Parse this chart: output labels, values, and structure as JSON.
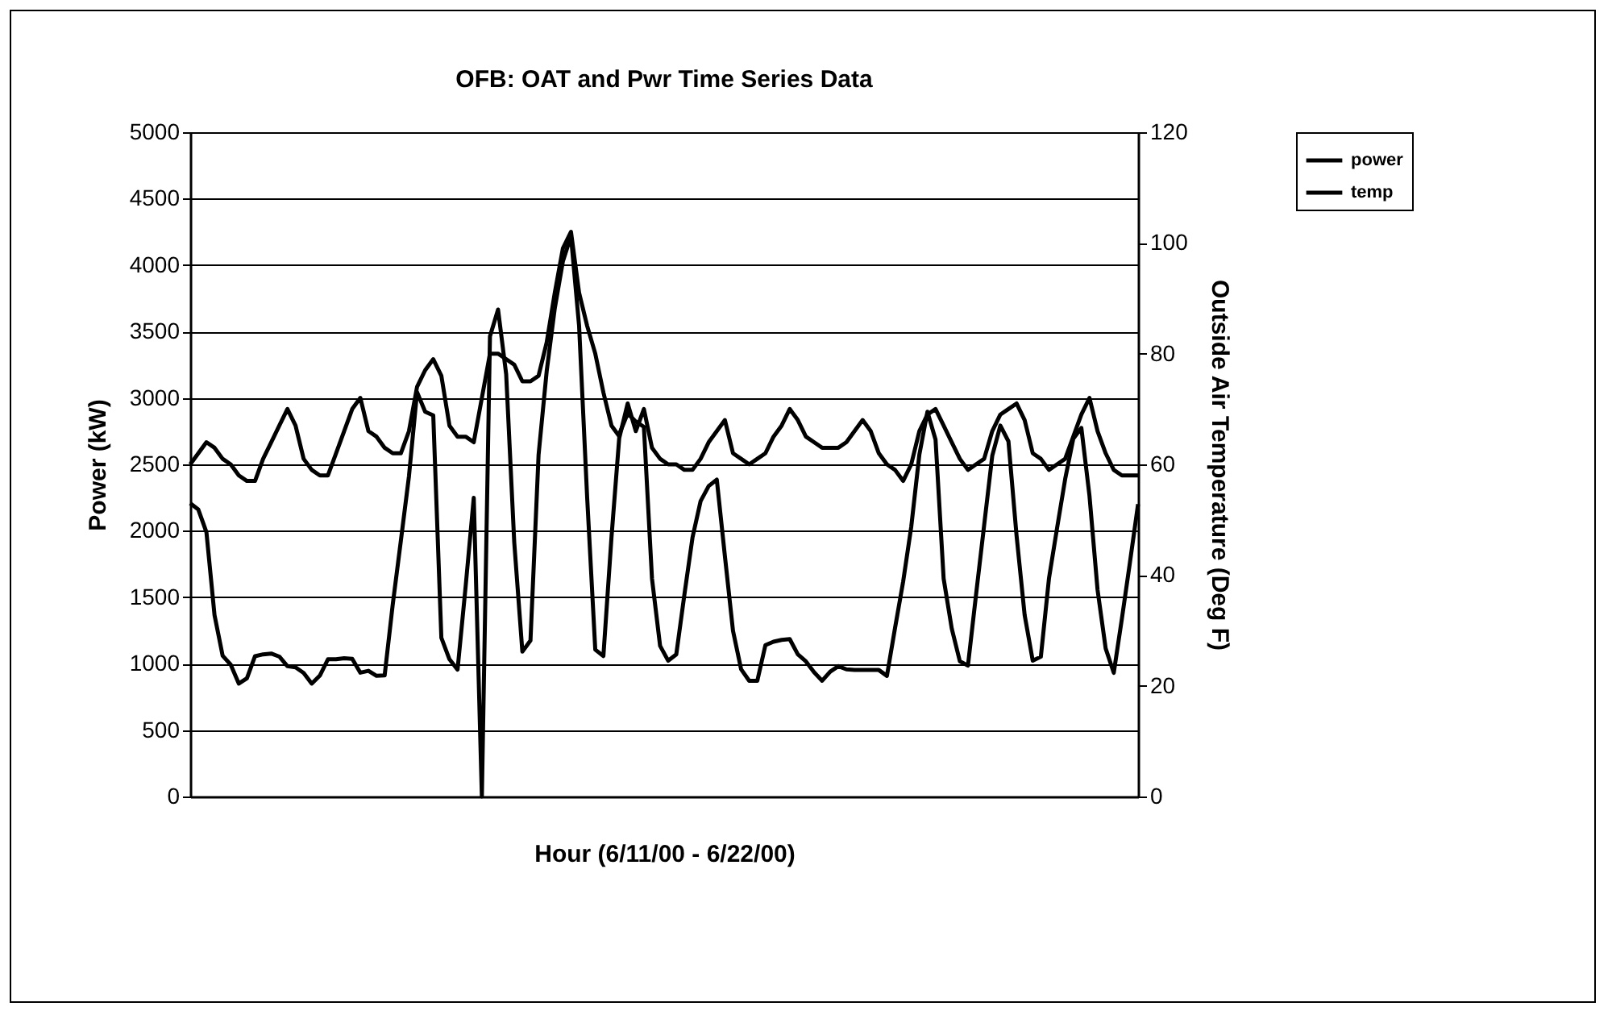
{
  "chart_data": {
    "type": "line",
    "title": "OFB: OAT and Pwr Time Series Data",
    "xlabel": "Hour (6/11/00 - 6/22/00)",
    "ylabel": "Power (kW)",
    "y2label": "Outside Air Temperature (Deg F)",
    "categories": [
      null,
      null,
      null,
      null,
      null,
      null,
      null,
      null,
      null,
      null,
      null,
      null,
      null,
      null,
      null,
      null,
      null,
      null,
      null,
      null,
      null,
      null,
      null,
      null,
      null,
      null,
      null,
      null,
      null,
      null,
      null,
      null,
      null,
      null,
      null,
      null,
      null,
      null,
      null,
      null,
      null,
      null,
      null,
      null,
      null,
      null,
      null,
      null,
      null,
      null,
      null,
      null,
      null,
      null,
      null,
      null,
      null,
      null,
      null,
      null,
      null,
      null,
      null,
      null,
      null,
      null,
      null,
      null,
      null,
      null,
      null,
      null,
      null,
      null,
      null,
      null,
      null,
      null,
      null,
      null,
      null,
      null,
      null,
      null,
      null,
      null,
      null,
      null,
      null,
      null,
      null,
      null,
      null,
      null,
      null,
      null,
      null,
      null,
      null,
      null,
      null,
      null,
      null,
      null,
      null,
      null,
      null,
      null,
      null,
      null,
      null,
      null,
      null,
      null,
      null,
      null,
      null,
      null
    ],
    "series": [
      {
        "name": "power",
        "color": "#000000",
        "values": [
          2207,
          2160,
          1990,
          1365,
          1060,
          992,
          850,
          890,
          1056,
          1070,
          1076,
          1053,
          981,
          972,
          930,
          850,
          910,
          1033,
          1033,
          1041,
          1036,
          932,
          946,
          908,
          911,
          1446,
          1924,
          2410,
          3044,
          2896,
          2869,
          1195,
          1033,
          955,
          1583,
          2248,
          0,
          3463,
          3665,
          3179,
          1911,
          1090,
          1174,
          2572,
          3200,
          3674,
          4027,
          4217,
          3544,
          2248,
          1105,
          1057,
          1951,
          2734,
          2884,
          2822,
          2782,
          1640,
          1134,
          1022,
          1070,
          1519,
          1949,
          2223,
          2337,
          2385,
          1809,
          1247,
          958,
          871,
          871,
          1139,
          1165,
          1179,
          1185,
          1070,
          1017,
          936,
          871,
          940,
          981,
          957,
          953,
          952,
          952,
          952,
          908,
          1268,
          1616,
          2029,
          2572,
          2896,
          2687,
          1640,
          1265,
          1018,
          985,
          1519,
          2042,
          2564,
          2792,
          2673,
          1965,
          1365,
          1022,
          1052,
          1640,
          2020,
          2389,
          2693,
          2774,
          2265,
          1555,
          1114,
          931,
          1337,
          1763,
          2200
        ]
      },
      {
        "name": "temp",
        "color": "#000000",
        "axis": "y2",
        "values": [
          60,
          62,
          64,
          63,
          61,
          60,
          58,
          57,
          57,
          61,
          64,
          67,
          70,
          67,
          61,
          59,
          58,
          58,
          62,
          66,
          70,
          72,
          66,
          65,
          63,
          62,
          62,
          66,
          74,
          77,
          79,
          76,
          67,
          65,
          65,
          64,
          72,
          80,
          80,
          79,
          78,
          75,
          75,
          76,
          82,
          91,
          99,
          102,
          91,
          85,
          80,
          73,
          67,
          65,
          71,
          66,
          70,
          63,
          61,
          60,
          60,
          59,
          59,
          61,
          64,
          66,
          68,
          62,
          61,
          60,
          61,
          62,
          65,
          67,
          70,
          68,
          65,
          64,
          63,
          63,
          63,
          64,
          66,
          68,
          66,
          62,
          60,
          59,
          57,
          60,
          66,
          69,
          70,
          67,
          64,
          61,
          59,
          60,
          61,
          66,
          69,
          70,
          71,
          68,
          62,
          61,
          59,
          60,
          61,
          65,
          69,
          72,
          66,
          62,
          59,
          58,
          58,
          58
        ]
      }
    ],
    "ylim": [
      0,
      5000
    ],
    "yticks": [
      0,
      500,
      1000,
      1500,
      2000,
      2500,
      3000,
      3500,
      4000,
      4500,
      5000
    ],
    "y2lim": [
      0,
      120
    ],
    "y2ticks": [
      0,
      20,
      40,
      60,
      80,
      100,
      120
    ],
    "grid": "y",
    "legend": "right"
  }
}
